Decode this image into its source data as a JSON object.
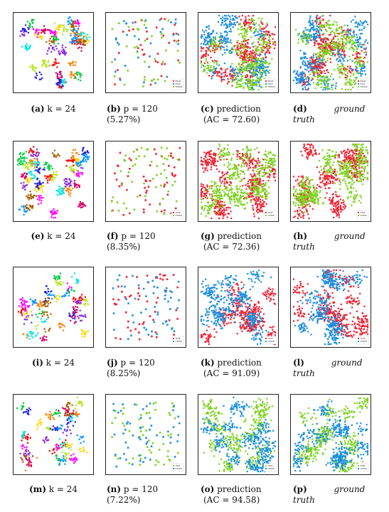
{
  "chart_data": [
    {
      "type": "scatter",
      "id": "a",
      "label": "(a)",
      "caption_main": "k = 24",
      "colors": [
        "#ff0000",
        "#ff7f00",
        "#ffd400",
        "#b5e61d",
        "#00cc44",
        "#00e5e5",
        "#0096ff",
        "#2020dd",
        "#8a2be2",
        "#ff00ff",
        "#d4006a",
        "#a65c00"
      ],
      "points_per_color": 42,
      "legend": []
    },
    {
      "type": "scatter",
      "id": "b",
      "label": "(b)",
      "caption_main": "p   =   120",
      "caption_sub": "(5.27%)",
      "colors": [
        "#ee2233",
        "#1a8fe0",
        "#7ed321"
      ],
      "points_per_color": 35,
      "legend": [
        "BRAIN",
        "MALE",
        "FEMALE"
      ]
    },
    {
      "type": "scatter",
      "id": "c",
      "label": "(c)",
      "caption_main": "prediction",
      "caption_sub": "(AC = 72.60)",
      "colors": [
        "#ee2233",
        "#1a8fe0",
        "#7ed321"
      ],
      "points_per_color": 380,
      "legend": [
        "BRAIN",
        "MALE",
        "FEMALE"
      ]
    },
    {
      "type": "scatter",
      "id": "d",
      "label": "(d)",
      "caption_main": "ground",
      "caption_sub": "truth",
      "colors": [
        "#ee2233",
        "#1a8fe0",
        "#7ed321"
      ],
      "points_per_color": 380,
      "legend": [
        "BRAIN",
        "MALE",
        "FEMALE"
      ]
    },
    {
      "type": "scatter",
      "id": "e",
      "label": "(e)",
      "caption_main": "k = 24",
      "colors": [
        "#ff0000",
        "#ff7f00",
        "#ffd400",
        "#b5e61d",
        "#00cc44",
        "#00e5e5",
        "#0096ff",
        "#2020dd",
        "#8a2be2",
        "#ff00ff",
        "#d4006a",
        "#a65c00"
      ],
      "points_per_color": 48,
      "legend": []
    },
    {
      "type": "scatter",
      "id": "f",
      "label": "(f)",
      "caption_main": "p   =   120",
      "caption_sub": "(8.35%)",
      "colors": [
        "#ee2233",
        "#7ed321"
      ],
      "points_per_color": 55,
      "legend": [
        "TRUE",
        "OTHER"
      ]
    },
    {
      "type": "scatter",
      "id": "g",
      "label": "(g)",
      "caption_main": "prediction",
      "caption_sub": "(AC = 72.36)",
      "colors": [
        "#ee2233",
        "#7ed321"
      ],
      "points_per_color": 520,
      "legend": [
        "TRUE",
        "OTHER"
      ]
    },
    {
      "type": "scatter",
      "id": "h",
      "label": "(h)",
      "caption_main": "ground",
      "caption_sub": "truth",
      "colors": [
        "#ee2233",
        "#7ed321"
      ],
      "points_per_color": 520,
      "legend": [
        "TRUE",
        "OTHER"
      ]
    },
    {
      "type": "scatter",
      "id": "i",
      "label": "(i)",
      "caption_main": "k = 24",
      "colors": [
        "#ff0000",
        "#ff7f00",
        "#ffd400",
        "#b5e61d",
        "#00cc44",
        "#00e5e5",
        "#0096ff",
        "#2020dd",
        "#8a2be2",
        "#ff00ff",
        "#d4006a",
        "#a65c00"
      ],
      "points_per_color": 30,
      "legend": []
    },
    {
      "type": "scatter",
      "id": "j",
      "label": "(j)",
      "caption_main": "p   =   120",
      "caption_sub": "(8.25%)",
      "colors": [
        "#ee2233",
        "#1a8fe0"
      ],
      "points_per_color": 55,
      "legend": [
        "TRUE",
        "OTHER"
      ]
    },
    {
      "type": "scatter",
      "id": "k",
      "label": "(k)",
      "caption_main": "prediction",
      "caption_sub": "(AC = 91.09)",
      "colors": [
        "#ee2233",
        "#1a8fe0"
      ],
      "points_per_color": 420,
      "legend": [
        "TRUE",
        "OTHER"
      ]
    },
    {
      "type": "scatter",
      "id": "l",
      "label": "(l)",
      "caption_main": "ground",
      "caption_sub": "truth",
      "colors": [
        "#ee2233",
        "#1a8fe0"
      ],
      "points_per_color": 420,
      "legend": [
        "TRUE",
        "OTHER"
      ]
    },
    {
      "type": "scatter",
      "id": "m",
      "label": "(m)",
      "caption_main": "k = 24",
      "colors": [
        "#ff0000",
        "#ff7f00",
        "#ffd400",
        "#b5e61d",
        "#00cc44",
        "#00e5e5",
        "#0096ff",
        "#2020dd",
        "#8a2be2",
        "#ff00ff",
        "#d4006a",
        "#a65c00"
      ],
      "points_per_color": 32,
      "legend": []
    },
    {
      "type": "scatter",
      "id": "n",
      "label": "(n)",
      "caption_main": "p   =   120",
      "caption_sub": "(7.22%)",
      "colors": [
        "#7ed321",
        "#1a8fe0"
      ],
      "points_per_color": 55,
      "legend": [
        "TRUE",
        "OTHER"
      ]
    },
    {
      "type": "scatter",
      "id": "o",
      "label": "(o)",
      "caption_main": "prediction",
      "caption_sub": "(AC = 94.58)",
      "colors": [
        "#7ed321",
        "#1a8fe0"
      ],
      "points_per_color": 420,
      "legend": [
        "TRUE",
        "OTHER"
      ]
    },
    {
      "type": "scatter",
      "id": "p",
      "label": "(p)",
      "caption_main": "ground",
      "caption_sub": "truth",
      "colors": [
        "#7ed321",
        "#1a8fe0"
      ],
      "points_per_color": 420,
      "legend": [
        "TRUE",
        "OTHER"
      ]
    }
  ]
}
